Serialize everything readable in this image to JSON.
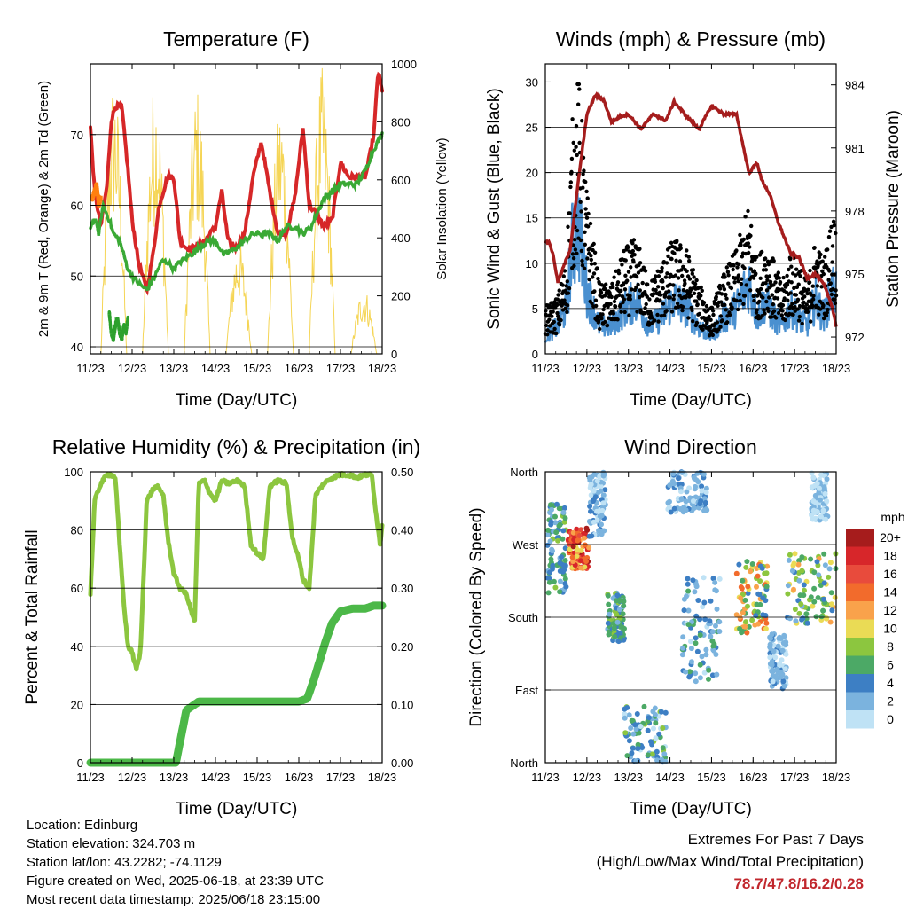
{
  "chart_data": [
    {
      "type": "line",
      "title": "Temperature (F)",
      "xlabel": "Time (Day/UTC)",
      "ylabel": "2m & 9m T (Red, Orange) & 2m Td (Green)",
      "ylabel_right": "Solar Insolation (Yellow)",
      "x_ticks": [
        "11/23",
        "12/23",
        "13/23",
        "14/23",
        "15/23",
        "16/23",
        "17/23",
        "18/23"
      ],
      "xlim": [
        0,
        7
      ],
      "ylim": [
        39,
        80
      ],
      "ylim_right": [
        0,
        1000
      ],
      "y_ticks": [
        40,
        50,
        60,
        70
      ],
      "y_ticks_right": [
        0,
        200,
        400,
        600,
        800,
        1000
      ],
      "grid": "horizontal",
      "series": [
        {
          "color": "#d62728",
          "x": [
            0,
            0.1,
            0.25,
            0.4,
            0.5,
            0.6,
            0.75,
            0.9,
            1.0,
            1.15,
            1.35,
            1.5,
            1.65,
            1.85,
            2.0,
            2.15,
            2.3,
            2.5,
            2.75,
            3.0,
            3.15,
            3.3,
            3.5,
            3.7,
            3.9,
            4.1,
            4.3,
            4.5,
            4.7,
            4.9,
            5.1,
            5.25,
            5.4,
            5.6,
            5.8,
            6.0,
            6.2,
            6.4,
            6.6,
            6.8,
            6.9,
            7.0
          ],
          "y": [
            71,
            62,
            57,
            63,
            72,
            74,
            74,
            65,
            58,
            52,
            48,
            53,
            60,
            64,
            64,
            55,
            54,
            54,
            55,
            57,
            62,
            55,
            54,
            56,
            64,
            69,
            62,
            56,
            56,
            61,
            71,
            60,
            59,
            57,
            58,
            66,
            64,
            64,
            64,
            70,
            79,
            76
          ]
        },
        {
          "color": "#ff7f0e",
          "x": [
            0.05,
            0.1,
            0.15,
            0.2,
            0.25
          ],
          "y": [
            61,
            62,
            63,
            60,
            61
          ]
        },
        {
          "color": "#3aa935",
          "x": [
            0,
            0.1,
            0.2,
            0.3,
            0.45,
            0.55,
            0.7,
            0.9,
            1.0,
            1.15,
            1.35,
            1.55,
            1.7,
            1.85,
            2.0,
            2.15,
            2.4,
            2.6,
            2.85,
            3.0,
            3.2,
            3.5,
            3.7,
            3.9,
            4.1,
            4.3,
            4.5,
            4.7,
            4.9,
            5.1,
            5.3,
            5.6,
            5.8,
            6.0,
            6.2,
            6.4,
            6.6,
            6.8,
            7.0
          ],
          "y": [
            57,
            58,
            56,
            60,
            58,
            56,
            55,
            51,
            50,
            49,
            48,
            50,
            52,
            52,
            51,
            52,
            53,
            54,
            55,
            55,
            53,
            54,
            55,
            56,
            56,
            56,
            55,
            57,
            57,
            56,
            57,
            61,
            62,
            63,
            63,
            63,
            65,
            68,
            70
          ]
        },
        {
          "color": "#2ca02c",
          "x": [
            0.45,
            0.5,
            0.55,
            0.6,
            0.65,
            0.7,
            0.75,
            0.8,
            0.85,
            0.9
          ],
          "y": [
            45,
            42,
            41,
            43,
            44,
            42,
            41,
            43,
            42,
            44
          ]
        }
      ],
      "solar": {
        "color": "#f5d555",
        "peaks_x": [
          0.55,
          1.55,
          2.6,
          3.55,
          4.55,
          5.55,
          6.55
        ],
        "peaks_y": [
          960,
          960,
          930,
          390,
          870,
          990,
          230
        ]
      }
    },
    {
      "type": "scatter",
      "title": "Winds (mph) & Pressure (mb)",
      "xlabel": "Time (Day/UTC)",
      "ylabel": "Sonic Wind & Gust (Blue, Black)",
      "ylabel_right": "Station Pressure (Maroon)",
      "x_ticks": [
        "11/23",
        "12/23",
        "13/23",
        "14/23",
        "15/23",
        "16/23",
        "17/23",
        "18/23"
      ],
      "xlim": [
        0,
        7
      ],
      "ylim": [
        0,
        32
      ],
      "ylim_right": [
        971.2,
        985.0
      ],
      "y_ticks": [
        0,
        5,
        10,
        15,
        20,
        25,
        30
      ],
      "y_ticks_right": [
        972,
        975,
        978,
        981,
        984
      ],
      "grid": "horizontal",
      "pressure": {
        "color": "#a51d1d",
        "x": [
          0,
          0.1,
          0.2,
          0.3,
          0.45,
          0.6,
          0.8,
          1.0,
          1.2,
          1.4,
          1.6,
          1.8,
          2.0,
          2.3,
          2.6,
          2.9,
          3.1,
          3.4,
          3.7,
          4.0,
          4.3,
          4.6,
          4.9,
          5.1,
          5.2,
          5.4,
          5.6,
          5.9,
          6.1,
          6.3,
          6.5,
          6.7,
          6.9,
          7.0
        ],
        "y": [
          976.5,
          976.5,
          975.8,
          974.6,
          975.4,
          976.2,
          979.5,
          982.6,
          983.5,
          983.3,
          982.2,
          982.5,
          982.6,
          981.9,
          982.6,
          982.3,
          983.2,
          982.5,
          981.9,
          983.0,
          982.6,
          982.6,
          979.8,
          980.3,
          979.5,
          978.8,
          977.5,
          976.0,
          975.8,
          974.8,
          975.0,
          974.5,
          973.5,
          972.5
        ]
      },
      "wind_envelope": {
        "x": [
          0,
          0.3,
          0.5,
          0.65,
          0.8,
          1.0,
          1.3,
          1.6,
          1.9,
          2.2,
          2.5,
          2.8,
          3.1,
          3.4,
          3.7,
          4.0,
          4.3,
          4.6,
          4.9,
          5.1,
          5.3,
          5.5,
          5.7,
          5.9,
          6.1,
          6.3,
          6.5,
          6.7,
          6.9,
          7.0
        ],
        "gust": [
          4,
          5,
          8,
          20,
          24,
          14,
          6,
          6,
          9,
          10,
          6,
          8,
          10,
          9,
          6,
          4,
          7,
          9,
          13,
          8,
          10,
          8,
          6,
          9,
          8,
          6,
          10,
          8,
          12,
          12
        ],
        "sustained": [
          2,
          3,
          5,
          12,
          14,
          7,
          3,
          3,
          5,
          6,
          3,
          4,
          6,
          5,
          3,
          2,
          4,
          5,
          8,
          4,
          6,
          4,
          3,
          5,
          4,
          3,
          6,
          4,
          7,
          7
        ]
      },
      "colors": {
        "gust": "#000000",
        "sustained": "#4a90d0"
      }
    },
    {
      "type": "line",
      "title": "Relative Humidity (%) & Precipitation (in)",
      "xlabel": "Time (Day/UTC)",
      "ylabel": "Percent & Total Rainfall",
      "x_ticks": [
        "11/23",
        "12/23",
        "13/23",
        "14/23",
        "15/23",
        "16/23",
        "17/23",
        "18/23"
      ],
      "xlim": [
        0,
        7
      ],
      "ylim": [
        0,
        100
      ],
      "ylim_right": [
        0,
        0.5
      ],
      "y_ticks": [
        0,
        20,
        40,
        60,
        80,
        100
      ],
      "y_ticks_right": [
        "0.00",
        "0.10",
        "0.20",
        "0.30",
        "0.40",
        "0.50"
      ],
      "grid": "horizontal",
      "series": [
        {
          "color": "#8cc63f",
          "x": [
            0,
            0.1,
            0.25,
            0.4,
            0.5,
            0.6,
            0.7,
            0.8,
            0.9,
            1.0,
            1.1,
            1.2,
            1.35,
            1.5,
            1.6,
            1.75,
            1.85,
            2.0,
            2.15,
            2.3,
            2.5,
            2.6,
            2.75,
            2.85,
            3.0,
            3.15,
            3.3,
            3.55,
            3.7,
            3.85,
            4.0,
            4.15,
            4.3,
            4.5,
            4.7,
            4.85,
            5.0,
            5.1,
            5.25,
            5.4,
            5.6,
            5.8,
            6.0,
            6.2,
            6.4,
            6.6,
            6.75,
            6.85,
            6.95,
            7.0
          ],
          "y": [
            58,
            90,
            96,
            99,
            99,
            98,
            75,
            55,
            40,
            38,
            32,
            38,
            90,
            94,
            95,
            92,
            78,
            65,
            60,
            58,
            48,
            96,
            97,
            93,
            90,
            97,
            96,
            97,
            95,
            75,
            72,
            70,
            95,
            97,
            96,
            77,
            70,
            63,
            60,
            92,
            96,
            98,
            99,
            99,
            98,
            99,
            99,
            86,
            75,
            82
          ]
        },
        {
          "color": "#4cb848",
          "x": [
            0,
            0.5,
            1.0,
            1.5,
            1.9,
            2.05,
            2.12,
            2.3,
            2.6,
            3.0,
            3.5,
            4.0,
            4.5,
            4.8,
            5.0,
            5.2,
            5.35,
            5.5,
            5.65,
            5.8,
            6.0,
            6.3,
            6.6,
            6.8,
            7.0
          ],
          "y": [
            0,
            0,
            0,
            0,
            0,
            0,
            5,
            18,
            21,
            21,
            21,
            21,
            21,
            21,
            21,
            22,
            28,
            35,
            42,
            48,
            52,
            53,
            53,
            54,
            54
          ]
        }
      ]
    },
    {
      "type": "scatter",
      "title": "Wind Direction",
      "xlabel": "Time (Day/UTC)",
      "ylabel": "Direction (Colored By Speed)",
      "x_ticks": [
        "11/23",
        "12/23",
        "13/23",
        "14/23",
        "15/23",
        "16/23",
        "17/23",
        "18/23"
      ],
      "xlim": [
        0,
        7
      ],
      "ylim": [
        0,
        360
      ],
      "y_ticks": [
        "North",
        "East",
        "South",
        "West",
        "North"
      ],
      "grid": "horizontal",
      "legend": {
        "title": "mph",
        "labels": [
          "20+",
          "18",
          "16",
          "14",
          "12",
          "10",
          "8",
          "6",
          "4",
          "2",
          "0"
        ],
        "colors": [
          "#a61c1c",
          "#d7262a",
          "#e84b3c",
          "#f26b2c",
          "#f9a24b",
          "#eadb55",
          "#8cc63f",
          "#4ca966",
          "#3d7fc4",
          "#7bb3de",
          "#bfe2f5"
        ],
        "placement": "right"
      },
      "clusters": [
        {
          "x": [
            0.05,
            0.5
          ],
          "y": [
            210,
            320
          ],
          "speed": [
            2,
            8
          ]
        },
        {
          "x": [
            0.55,
            1.05
          ],
          "y": [
            240,
            290
          ],
          "speed": [
            10,
            20
          ]
        },
        {
          "x": [
            1.05,
            1.45
          ],
          "y": [
            280,
            360
          ],
          "speed": [
            0,
            4
          ]
        },
        {
          "x": [
            1.5,
            1.9
          ],
          "y": [
            150,
            210
          ],
          "speed": [
            2,
            8
          ]
        },
        {
          "x": [
            1.9,
            2.9
          ],
          "y": [
            0,
            70
          ],
          "speed": [
            0,
            8
          ]
        },
        {
          "x": [
            2.95,
            3.9
          ],
          "y": [
            310,
            360
          ],
          "speed": [
            0,
            4
          ]
        },
        {
          "x": [
            3.3,
            4.2
          ],
          "y": [
            100,
            230
          ],
          "speed": [
            0,
            6
          ]
        },
        {
          "x": [
            4.6,
            5.35
          ],
          "y": [
            160,
            250
          ],
          "speed": [
            4,
            14
          ]
        },
        {
          "x": [
            5.4,
            5.8
          ],
          "y": [
            90,
            160
          ],
          "speed": [
            0,
            4
          ]
        },
        {
          "x": [
            5.8,
            7.0
          ],
          "y": [
            170,
            260
          ],
          "speed": [
            2,
            12
          ]
        },
        {
          "x": [
            6.4,
            6.8
          ],
          "y": [
            300,
            360
          ],
          "speed": [
            0,
            2
          ]
        }
      ]
    }
  ],
  "info": {
    "location": "Location: Edinburg",
    "elevation": "Station elevation: 324.703 m",
    "latlon": "Station lat/lon: 43.2282; -74.1129",
    "created": "Figure created on Wed, 2025-06-18, at 23:39 UTC",
    "recent": "Most recent data timestamp: 2025/06/18 23:15:00"
  },
  "extremes": {
    "line1": "Extremes For Past 7 Days",
    "line2": "(High/Low/Max Wind/Total Precipitation)",
    "values": "78.7/47.8/16.2/0.28"
  }
}
